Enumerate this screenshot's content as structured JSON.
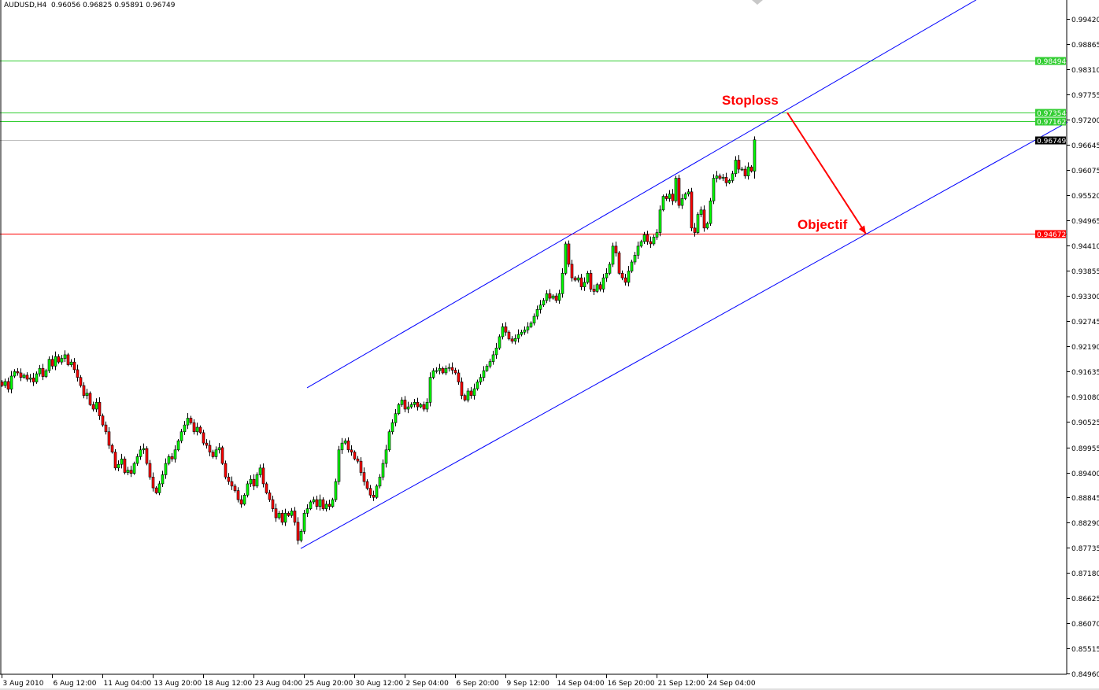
{
  "header": {
    "symbol": "AUDUSD,H4",
    "open": "0.96056",
    "high": "0.96825",
    "low": "0.95891",
    "close": "0.96749"
  },
  "annotations": {
    "stoploss": "Stoploss",
    "objectif": "Objectif"
  },
  "colors": {
    "bull": "#00ff00",
    "bear": "#ff0000",
    "channel": "#0000ff",
    "arrow": "#ff0000",
    "level_green": "#32cd32",
    "level_red": "#ff0000",
    "bid": "#000000"
  },
  "chart_data": {
    "type": "candlestick",
    "symbol": "AUDUSD",
    "timeframe": "H4",
    "ylim": [
      0.8496,
      0.9984
    ],
    "y_ticks": [
      "0.99420",
      "0.98865",
      "0.98310",
      "0.97755",
      "0.97200",
      "0.96645",
      "0.96075",
      "0.95520",
      "0.94965",
      "0.94410",
      "0.93855",
      "0.93300",
      "0.92745",
      "0.92190",
      "0.91635",
      "0.91080",
      "0.90525",
      "0.89955",
      "0.89400",
      "0.88845",
      "0.88290",
      "0.87735",
      "0.87180",
      "0.86625",
      "0.86070",
      "0.85515",
      "0.84960"
    ],
    "x_ticks": [
      "3 Aug 2010",
      "6 Aug 12:00",
      "11 Aug 04:00",
      "13 Aug 20:00",
      "18 Aug 12:00",
      "23 Aug 04:00",
      "25 Aug 20:00",
      "30 Aug 12:00",
      "2 Sep 04:00",
      "6 Sep 20:00",
      "9 Sep 12:00",
      "14 Sep 04:00",
      "16 Sep 20:00",
      "21 Sep 12:00",
      "24 Sep 04:00"
    ],
    "grid": false,
    "last_bar": {
      "open": 0.96056,
      "high": 0.96825,
      "low": 0.95891,
      "close": 0.96749
    },
    "closes": [
      0.9132,
      0.9141,
      0.9124,
      0.9153,
      0.9163,
      0.916,
      0.915,
      0.9155,
      0.9146,
      0.9149,
      0.914,
      0.9158,
      0.917,
      0.9152,
      0.9165,
      0.919,
      0.9175,
      0.9196,
      0.9184,
      0.9192,
      0.92,
      0.9178,
      0.9184,
      0.9167,
      0.915,
      0.9132,
      0.911,
      0.9115,
      0.909,
      0.908,
      0.9095,
      0.9065,
      0.9045,
      0.903,
      0.9,
      0.8985,
      0.895,
      0.8958,
      0.897,
      0.894,
      0.8945,
      0.8938,
      0.896,
      0.8975,
      0.899,
      0.8993,
      0.896,
      0.893,
      0.8906,
      0.8895,
      0.8915,
      0.8935,
      0.896,
      0.8975,
      0.897,
      0.899,
      0.901,
      0.903,
      0.9045,
      0.906,
      0.905,
      0.903,
      0.904,
      0.9028,
      0.9005,
      0.9,
      0.8985,
      0.8975,
      0.899,
      0.8995,
      0.896,
      0.893,
      0.892,
      0.891,
      0.89,
      0.888,
      0.887,
      0.889,
      0.8915,
      0.8925,
      0.891,
      0.8935,
      0.895,
      0.8915,
      0.8895,
      0.888,
      0.886,
      0.884,
      0.885,
      0.883,
      0.885,
      0.8845,
      0.8855,
      0.883,
      0.879,
      0.881,
      0.885,
      0.886,
      0.8875,
      0.888,
      0.8865,
      0.888,
      0.886,
      0.887,
      0.8865,
      0.888,
      0.892,
      0.899,
      0.9005,
      0.901,
      0.899,
      0.8985,
      0.897,
      0.8965,
      0.894,
      0.892,
      0.8905,
      0.889,
      0.8885,
      0.891,
      0.893,
      0.896,
      0.899,
      0.903,
      0.905,
      0.907,
      0.909,
      0.91,
      0.908,
      0.9085,
      0.909,
      0.9095,
      0.9085,
      0.909,
      0.908,
      0.9095,
      0.915,
      0.9165,
      0.9165,
      0.917,
      0.916,
      0.917,
      0.9172,
      0.9166,
      0.916,
      0.914,
      0.911,
      0.91,
      0.912,
      0.911,
      0.9125,
      0.914,
      0.915,
      0.9165,
      0.9175,
      0.9185,
      0.92,
      0.9215,
      0.924,
      0.9262,
      0.925,
      0.9235,
      0.923,
      0.9236,
      0.9245,
      0.925,
      0.9255,
      0.9262,
      0.927,
      0.9285,
      0.93,
      0.931,
      0.932,
      0.9335,
      0.9325,
      0.933,
      0.932,
      0.9335,
      0.938,
      0.9445,
      0.94,
      0.937,
      0.9365,
      0.937,
      0.935,
      0.936,
      0.938,
      0.9345,
      0.934,
      0.9355,
      0.9345,
      0.937,
      0.938,
      0.94,
      0.944,
      0.9425,
      0.938,
      0.937,
      0.936,
      0.9385,
      0.9405,
      0.942,
      0.944,
      0.945,
      0.9465,
      0.945,
      0.9445,
      0.946,
      0.947,
      0.952,
      0.955,
      0.9545,
      0.9555,
      0.954,
      0.959,
      0.953,
      0.9545,
      0.9555,
      0.956,
      0.948,
      0.947,
      0.951,
      0.952,
      0.948,
      0.949,
      0.954,
      0.959,
      0.9595,
      0.959,
      0.9592,
      0.958,
      0.9585,
      0.96,
      0.963,
      0.961,
      0.961,
      0.9595,
      0.9615,
      0.96056,
      0.96749
    ],
    "levels": [
      {
        "price": 0.98494,
        "label": "0.98494",
        "color": "#32cd32"
      },
      {
        "price": 0.97354,
        "label": "0.97354",
        "color": "#32cd32"
      },
      {
        "price": 0.97162,
        "label": "0.97162",
        "color": "#32cd32"
      },
      {
        "price": 0.96749,
        "label": "0.96749",
        "color": "#000000"
      },
      {
        "price": 0.94672,
        "label": "0.94672",
        "color": "#ff0000"
      }
    ],
    "channel": {
      "upper": [
        {
          "bar": 97,
          "price": 0.9127
        },
        {
          "bar": 309.5,
          "price": 0.9984
        }
      ],
      "lower": [
        {
          "bar": 95,
          "price": 0.8772
        },
        {
          "bar": 338.5,
          "price": 0.9714
        }
      ]
    },
    "arrow": {
      "from": {
        "bar": 249.5,
        "price": 0.9735
      },
      "to": {
        "bar": 274.5,
        "price": 0.9467
      }
    }
  }
}
